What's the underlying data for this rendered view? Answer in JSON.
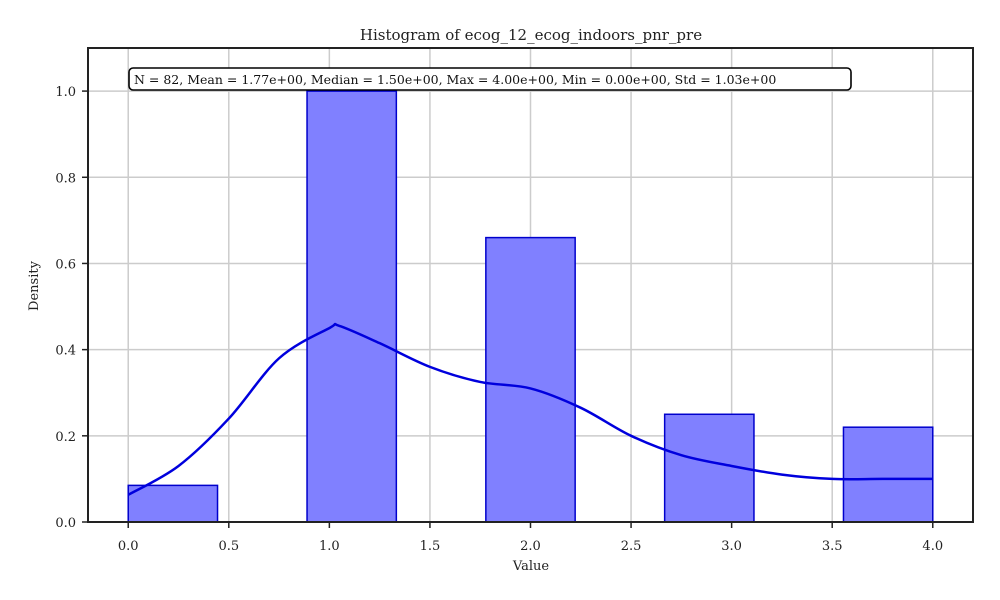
{
  "chart_data": {
    "type": "bar",
    "title": "Histogram of ecog_12_ecog_indoors_pnr_pre",
    "xlabel": "Value",
    "ylabel": "Density",
    "xlim": [
      -0.2,
      4.2
    ],
    "ylim": [
      0,
      1.1
    ],
    "xticks": [
      0.0,
      0.5,
      1.0,
      1.5,
      2.0,
      2.5,
      3.0,
      3.5,
      4.0
    ],
    "xtick_labels": [
      "0.0",
      "0.5",
      "1.0",
      "1.5",
      "2.0",
      "2.5",
      "3.0",
      "3.5",
      "4.0"
    ],
    "yticks": [
      0.0,
      0.2,
      0.4,
      0.6,
      0.8,
      1.0
    ],
    "ytick_labels": [
      "0.0",
      "0.2",
      "0.4",
      "0.6",
      "0.8",
      "1.0"
    ],
    "grid": true,
    "annotation": "N = 82, Mean = 1.77e+00, Median = 1.50e+00, Max = 4.00e+00, Min = 0.00e+00, Std = 1.03e+00",
    "bins": [
      {
        "x0": 0.0,
        "x1": 0.444,
        "value": 0.085
      },
      {
        "x0": 0.444,
        "x1": 0.889,
        "value": 0.0
      },
      {
        "x0": 0.889,
        "x1": 1.333,
        "value": 1.0
      },
      {
        "x0": 1.333,
        "x1": 1.778,
        "value": 0.0
      },
      {
        "x0": 1.778,
        "x1": 2.222,
        "value": 0.66
      },
      {
        "x0": 2.222,
        "x1": 2.667,
        "value": 0.0
      },
      {
        "x0": 2.667,
        "x1": 3.111,
        "value": 0.25
      },
      {
        "x0": 3.111,
        "x1": 3.556,
        "value": 0.0
      },
      {
        "x0": 3.556,
        "x1": 4.0,
        "value": 0.22
      }
    ],
    "kde": {
      "x": [
        0.0,
        0.25,
        0.5,
        0.75,
        1.0,
        1.05,
        1.25,
        1.5,
        1.75,
        2.0,
        2.25,
        2.5,
        2.75,
        3.0,
        3.25,
        3.5,
        3.75,
        4.0
      ],
      "y": [
        0.063,
        0.13,
        0.24,
        0.38,
        0.45,
        0.455,
        0.415,
        0.36,
        0.325,
        0.31,
        0.265,
        0.2,
        0.155,
        0.13,
        0.11,
        0.1,
        0.1,
        0.1
      ]
    },
    "colors": {
      "bar_fill": "#8080ff",
      "bar_edge": "#0000cc",
      "kde_line": "#0000dd",
      "grid": "#cccccc",
      "axes": "#222222"
    }
  }
}
